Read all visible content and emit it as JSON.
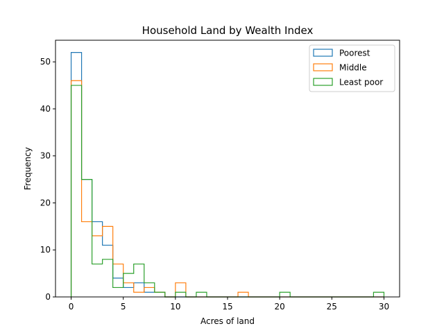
{
  "chart_data": {
    "type": "histogram",
    "histtype": "step",
    "title": "Household Land by Wealth Index",
    "xlabel": "Acres of land",
    "ylabel": "Frequency",
    "xlim": [
      -1.5,
      31.5
    ],
    "ylim": [
      0,
      54.6
    ],
    "xticks": [
      0,
      5,
      10,
      15,
      20,
      25,
      30
    ],
    "yticks": [
      0,
      10,
      20,
      30,
      40,
      50
    ],
    "bin_edges": [
      0,
      1,
      2,
      3,
      4,
      5,
      6,
      7,
      8,
      9,
      10,
      11,
      12,
      13,
      14,
      15,
      16,
      17,
      18,
      19,
      20,
      21,
      22,
      23,
      24,
      25,
      26,
      27,
      28,
      29,
      30
    ],
    "legend_position": "upper right",
    "grid": false,
    "series": [
      {
        "name": "Poorest",
        "color": "#1f77b4",
        "counts": [
          52,
          25,
          16,
          11,
          4,
          2,
          3,
          1,
          1,
          0,
          0,
          0,
          0,
          0,
          0,
          0,
          0,
          0,
          0,
          0,
          0,
          0,
          0,
          0,
          0,
          0,
          0,
          0,
          0,
          0
        ]
      },
      {
        "name": "Middle",
        "color": "#ff7f0e",
        "counts": [
          46,
          16,
          13,
          15,
          7,
          3,
          1,
          2,
          1,
          0,
          3,
          0,
          0,
          0,
          0,
          0,
          1,
          0,
          0,
          0,
          0,
          0,
          0,
          0,
          0,
          0,
          0,
          0,
          0,
          0
        ]
      },
      {
        "name": "Least poor",
        "color": "#2ca02c",
        "counts": [
          45,
          25,
          7,
          8,
          2,
          5,
          7,
          3,
          1,
          0,
          1,
          0,
          1,
          0,
          0,
          0,
          0,
          0,
          0,
          0,
          1,
          0,
          0,
          0,
          0,
          0,
          0,
          0,
          0,
          1
        ]
      }
    ]
  }
}
